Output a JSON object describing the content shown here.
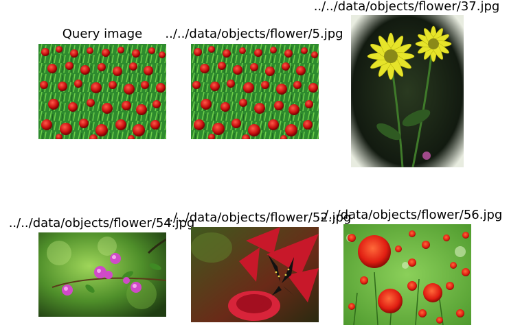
{
  "figure": {
    "panels": [
      {
        "title": "Query image",
        "image": "red-globe-amaranth-field"
      },
      {
        "title": "../../data/objects/flower/5.jpg",
        "image": "red-globe-amaranth-field"
      },
      {
        "title": "../../data/objects/flower/37.jpg",
        "image": "yellow-daisy-flowers"
      },
      {
        "title": "../../data/objects/flower/54.jpg",
        "image": "pink-bougainvillea-branch"
      },
      {
        "title": "../../data/objects/flower/52.jpg",
        "image": "black-butterfly-on-red-flower"
      },
      {
        "title": "../../data/objects/flower/56.jpg",
        "image": "red-globe-amaranth-closeup"
      }
    ]
  }
}
